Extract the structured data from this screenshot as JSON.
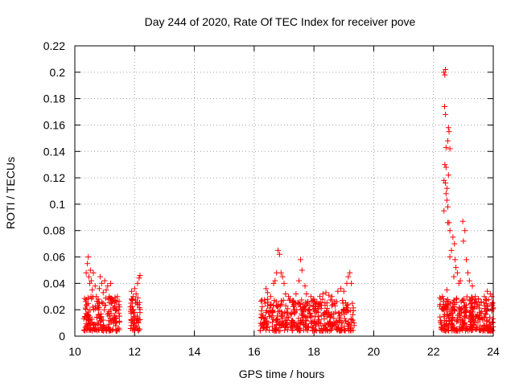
{
  "chart_data": {
    "type": "scatter",
    "title": "Day 244 of 2020, Rate Of TEC Index for receiver pove",
    "xlabel": "GPS time / hours",
    "ylabel": "ROTI / TECUs",
    "xlim": [
      10,
      24
    ],
    "ylim": [
      0,
      0.22
    ],
    "x_ticks": [
      "10",
      "12",
      "14",
      "16",
      "18",
      "20",
      "22",
      "24"
    ],
    "y_ticks": [
      "0",
      "0.02",
      "0.04",
      "0.06",
      "0.08",
      "0.1",
      "0.12",
      "0.14",
      "0.16",
      "0.18",
      "0.2",
      "0.22"
    ],
    "grid": true,
    "marker": "plus",
    "color": "#ff0000",
    "series": [
      {
        "points": [
          [
            10.38,
            0.048
          ],
          [
            10.42,
            0.055
          ],
          [
            10.45,
            0.06
          ],
          [
            10.47,
            0.045
          ],
          [
            10.5,
            0.04
          ],
          [
            10.52,
            0.05
          ],
          [
            10.55,
            0.042
          ],
          [
            10.58,
            0.035
          ],
          [
            10.62,
            0.048
          ],
          [
            10.68,
            0.038
          ],
          [
            10.72,
            0.03
          ],
          [
            10.78,
            0.028
          ],
          [
            10.82,
            0.036
          ],
          [
            10.85,
            0.045
          ],
          [
            10.9,
            0.04
          ],
          [
            10.95,
            0.033
          ],
          [
            11.0,
            0.042
          ],
          [
            11.05,
            0.035
          ],
          [
            11.1,
            0.038
          ],
          [
            11.15,
            0.03
          ],
          [
            11.2,
            0.04
          ],
          [
            11.25,
            0.028
          ],
          [
            11.35,
            0.027
          ],
          [
            10.6,
            0.022
          ],
          [
            10.8,
            0.02
          ],
          [
            11.9,
            0.034
          ],
          [
            11.95,
            0.03
          ],
          [
            12.0,
            0.036
          ],
          [
            12.05,
            0.032
          ],
          [
            12.1,
            0.04
          ],
          [
            12.15,
            0.044
          ],
          [
            12.18,
            0.046
          ],
          [
            11.88,
            0.025
          ],
          [
            16.4,
            0.036
          ],
          [
            16.45,
            0.033
          ],
          [
            16.55,
            0.03
          ],
          [
            16.65,
            0.04
          ],
          [
            16.7,
            0.042
          ],
          [
            16.75,
            0.048
          ],
          [
            16.8,
            0.065
          ],
          [
            16.85,
            0.062
          ],
          [
            16.9,
            0.048
          ],
          [
            16.95,
            0.045
          ],
          [
            17.0,
            0.04
          ],
          [
            17.05,
            0.032
          ],
          [
            17.15,
            0.03
          ],
          [
            17.2,
            0.028
          ],
          [
            17.3,
            0.027
          ],
          [
            17.4,
            0.032
          ],
          [
            17.5,
            0.042
          ],
          [
            17.55,
            0.058
          ],
          [
            17.6,
            0.05
          ],
          [
            17.7,
            0.038
          ],
          [
            17.75,
            0.032
          ],
          [
            17.9,
            0.03
          ],
          [
            18.0,
            0.028
          ],
          [
            18.1,
            0.026
          ],
          [
            18.2,
            0.03
          ],
          [
            18.3,
            0.032
          ],
          [
            18.4,
            0.033
          ],
          [
            18.5,
            0.031
          ],
          [
            18.6,
            0.03
          ],
          [
            18.7,
            0.026
          ],
          [
            18.8,
            0.034
          ],
          [
            18.9,
            0.036
          ],
          [
            19.0,
            0.034
          ],
          [
            19.1,
            0.04
          ],
          [
            19.15,
            0.045
          ],
          [
            19.2,
            0.048
          ],
          [
            19.25,
            0.04
          ],
          [
            22.35,
            0.2
          ],
          [
            22.38,
            0.198
          ],
          [
            22.4,
            0.202
          ],
          [
            22.37,
            0.174
          ],
          [
            22.4,
            0.168
          ],
          [
            22.5,
            0.158
          ],
          [
            22.52,
            0.155
          ],
          [
            22.48,
            0.148
          ],
          [
            22.55,
            0.142
          ],
          [
            22.42,
            0.143
          ],
          [
            22.38,
            0.13
          ],
          [
            22.42,
            0.128
          ],
          [
            22.5,
            0.122
          ],
          [
            22.35,
            0.118
          ],
          [
            22.4,
            0.116
          ],
          [
            22.45,
            0.112
          ],
          [
            22.42,
            0.108
          ],
          [
            22.45,
            0.103
          ],
          [
            22.48,
            0.098
          ],
          [
            22.35,
            0.095
          ],
          [
            22.52,
            0.086
          ],
          [
            22.48,
            0.086
          ],
          [
            22.55,
            0.08
          ],
          [
            22.65,
            0.075
          ],
          [
            22.7,
            0.07
          ],
          [
            22.6,
            0.065
          ],
          [
            22.55,
            0.06
          ],
          [
            22.72,
            0.058
          ],
          [
            22.75,
            0.052
          ],
          [
            22.8,
            0.048
          ],
          [
            22.68,
            0.045
          ],
          [
            22.85,
            0.04
          ],
          [
            22.9,
            0.042
          ],
          [
            22.98,
            0.087
          ],
          [
            23.05,
            0.08
          ],
          [
            23.0,
            0.072
          ],
          [
            23.1,
            0.058
          ],
          [
            23.15,
            0.048
          ],
          [
            23.2,
            0.042
          ],
          [
            23.3,
            0.038
          ],
          [
            23.4,
            0.03
          ],
          [
            23.5,
            0.028
          ],
          [
            23.6,
            0.026
          ],
          [
            23.7,
            0.03
          ],
          [
            23.8,
            0.034
          ],
          [
            23.9,
            0.032
          ],
          [
            23.95,
            0.03
          ],
          [
            22.45,
            0.035
          ],
          [
            22.3,
            0.03
          ],
          [
            22.25,
            0.028
          ]
        ],
        "clusters": [
          {
            "x": [
              10.3,
              11.5
            ],
            "y": [
              0.004,
              0.03
            ],
            "n": 180
          },
          {
            "x": [
              11.85,
              12.2
            ],
            "y": [
              0.004,
              0.03
            ],
            "n": 55
          },
          {
            "x": [
              16.2,
              19.35
            ],
            "y": [
              0.004,
              0.028
            ],
            "n": 420
          },
          {
            "x": [
              22.2,
              24.0
            ],
            "y": [
              0.004,
              0.03
            ],
            "n": 320
          }
        ]
      }
    ]
  }
}
